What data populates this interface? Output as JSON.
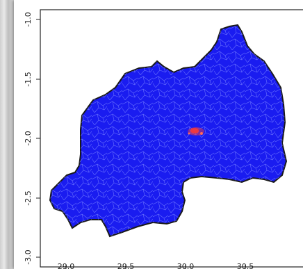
{
  "map": {
    "region_fill": "#1a1cf0",
    "region_border": "#1a1a1a",
    "boundary_lines": "#6f78ff",
    "hotspot_color": "#ff3b30",
    "axes": {
      "x_ticks": [
        "29.0",
        "29.5",
        "30.0",
        "30.5"
      ],
      "y_ticks": [
        "-1.0",
        "-1.5",
        "-2.0",
        "-2.5",
        "-3.0"
      ]
    },
    "hotspot": {
      "lon": 30.06,
      "lat": -1.95
    }
  }
}
